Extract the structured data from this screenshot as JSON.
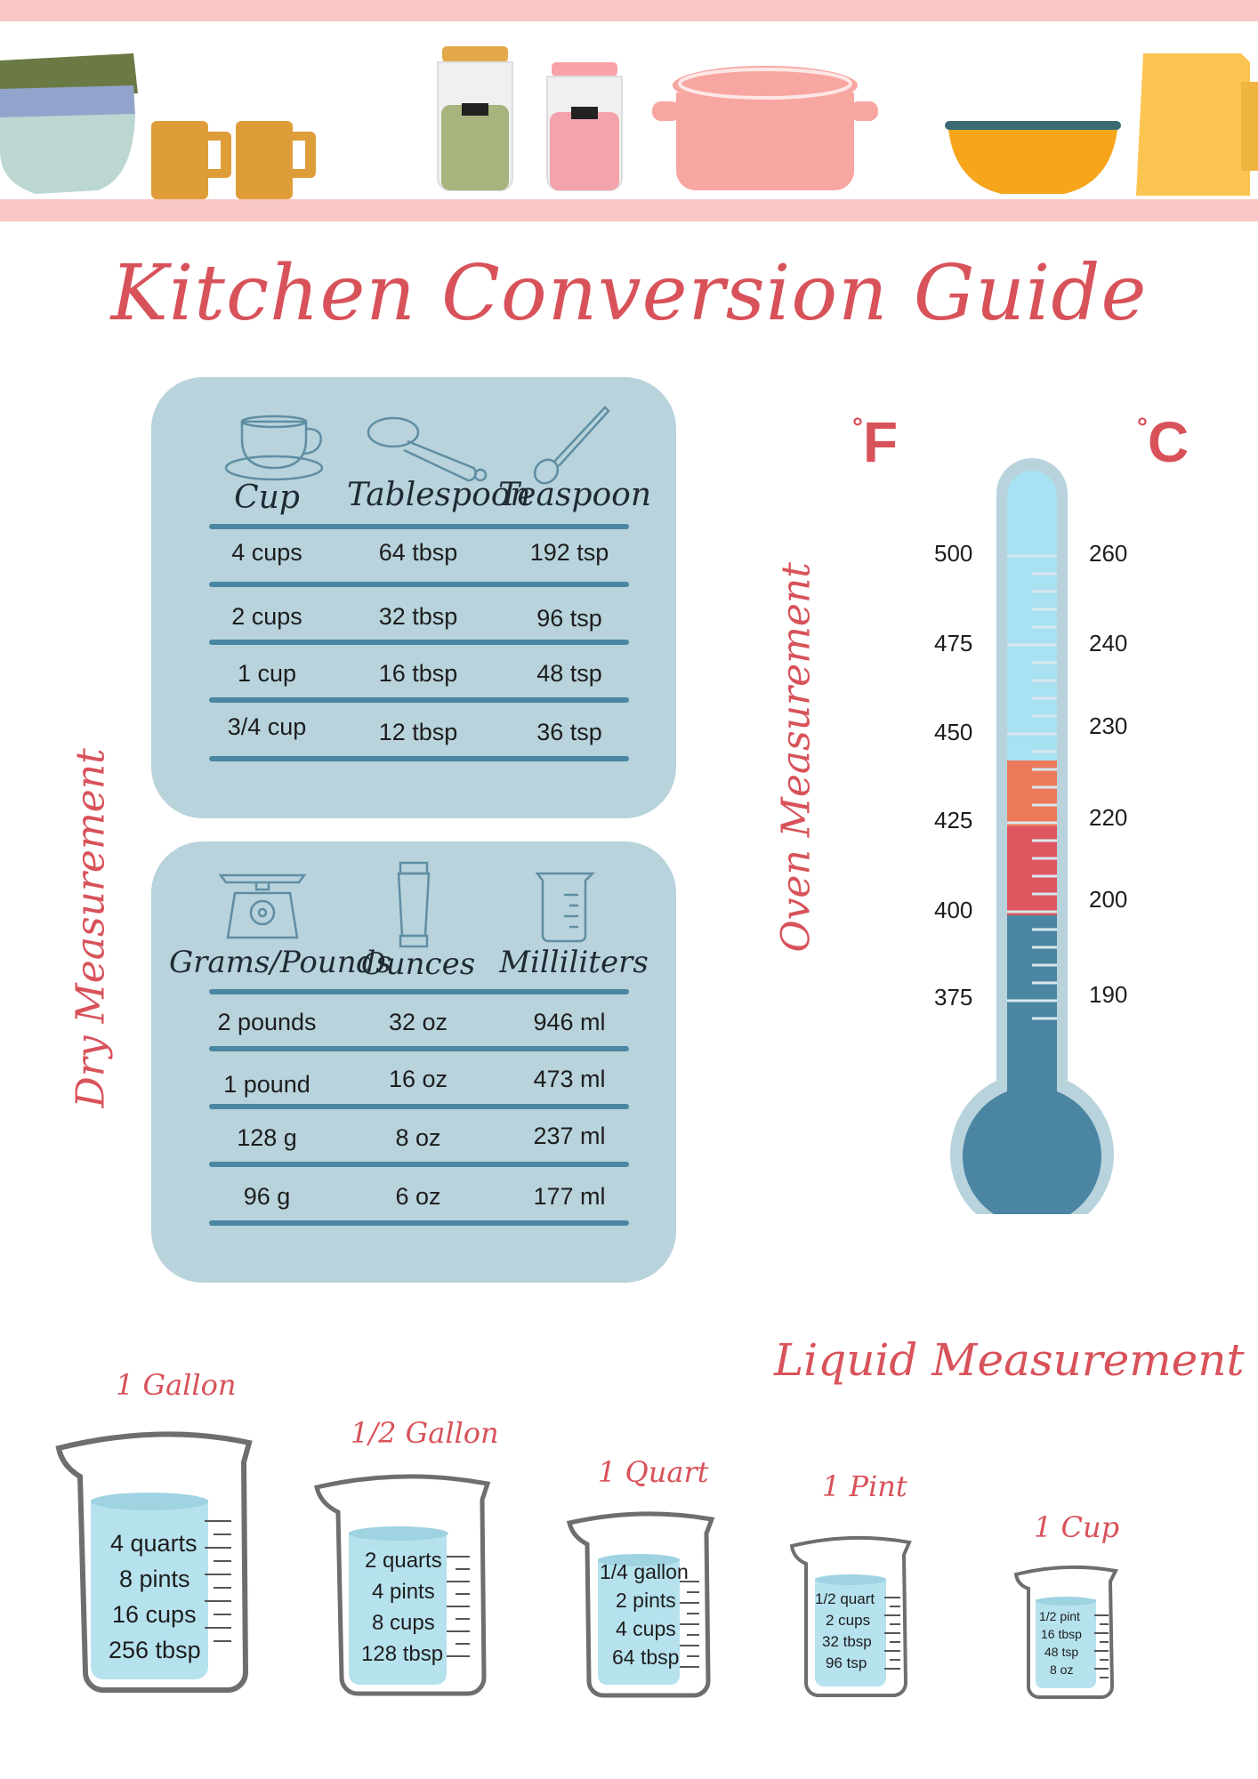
{
  "title": "Kitchen Conversion Guide",
  "section_labels": {
    "dry": "Dry Measurement",
    "oven": "Oven Measurement",
    "liquid": "Liquid Measurement"
  },
  "volume_table": {
    "headers": [
      "Cup",
      "Tablespoon",
      "Teaspoon"
    ],
    "icons": [
      "teacup-icon",
      "tablespoon-icon",
      "teaspoon-icon"
    ],
    "rows": [
      [
        "4 cups",
        "64 tbsp",
        "192 tsp"
      ],
      [
        "2 cups",
        "32 tbsp",
        "96 tsp"
      ],
      [
        "1 cup",
        "16 tbsp",
        "48 tsp"
      ],
      [
        "3/4 cup",
        "12 tbsp",
        "36 tsp"
      ]
    ]
  },
  "weight_table": {
    "headers": [
      "Grams/Pounds",
      "Ounces",
      "Milliliters"
    ],
    "icons": [
      "scale-icon",
      "shaker-icon",
      "measuring-cup-icon"
    ],
    "rows": [
      [
        "2 pounds",
        "32 oz",
        "946 ml"
      ],
      [
        "1 pound",
        "16 oz",
        "473 ml"
      ],
      [
        "128 g",
        "8 oz",
        "237 ml"
      ],
      [
        "96 g",
        "6 oz",
        "177 ml"
      ]
    ]
  },
  "oven": {
    "unit_f": "F",
    "unit_c": "C",
    "fahrenheit": [
      "500",
      "475",
      "450",
      "425",
      "400",
      "375"
    ],
    "celsius": [
      "260",
      "240",
      "230",
      "220",
      "200",
      "190"
    ],
    "colors": {
      "light": "#a8e1f2",
      "orange": "#ec7a5a",
      "red": "#dd5660",
      "dark": "#4a86a1",
      "outline": "#b9d3dc"
    }
  },
  "liquid": [
    {
      "name": "1 Gallon",
      "lines": [
        "4 quarts",
        "8 pints",
        "16 cups",
        "256 tbsp"
      ]
    },
    {
      "name": "1/2 Gallon",
      "lines": [
        "2 quarts",
        "4 pints",
        "8 cups",
        "128 tbsp"
      ]
    },
    {
      "name": "1 Quart",
      "lines": [
        "1/4 gallon",
        "2 pints",
        "4 cups",
        "64 tbsp"
      ]
    },
    {
      "name": "1 Pint",
      "lines": [
        "1/2 quart",
        "2 cups",
        "32 tbsp",
        "96 tsp"
      ]
    },
    {
      "name": "1 Cup",
      "lines": [
        "1/2 pint",
        "16 tbsp",
        "48 tsp",
        "8 oz"
      ]
    }
  ],
  "colors": {
    "accent": "#d8525a",
    "panel": "#b8d3dc",
    "rule": "#4a86a1",
    "shelf": "#f6c6c6"
  }
}
